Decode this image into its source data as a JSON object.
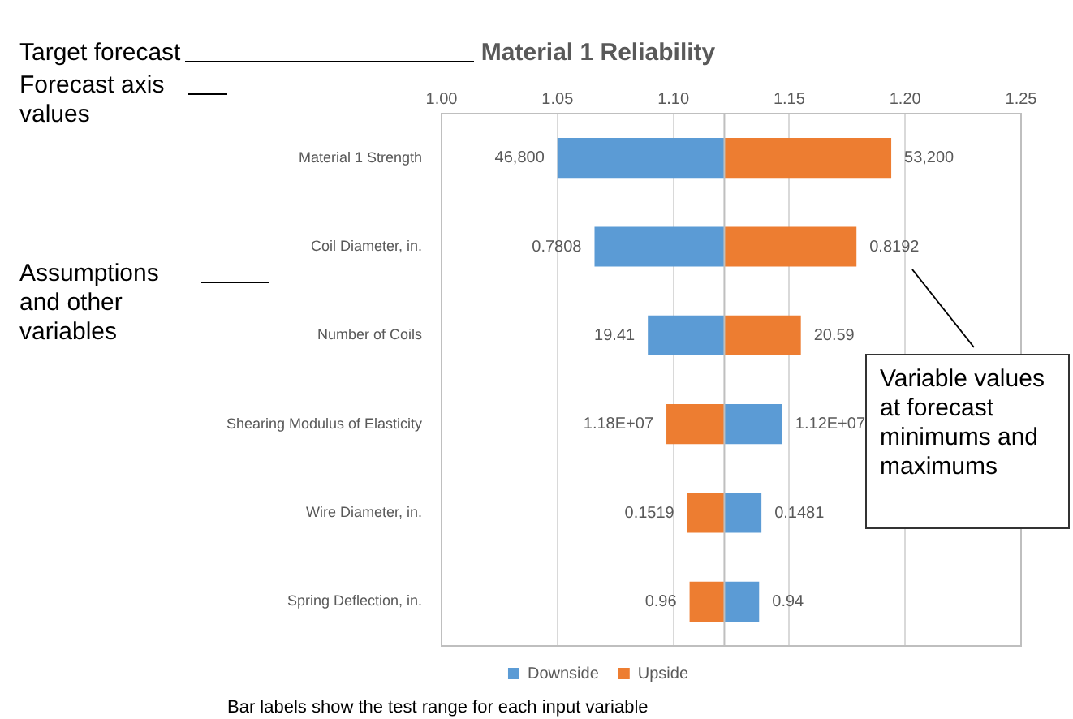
{
  "chart_data": {
    "type": "bar",
    "orientation": "horizontal",
    "title": "Material 1 Reliability",
    "categories": [
      "Material 1 Strength",
      "Coil Diameter, in.",
      "Number of Coils",
      "Shearing Modulus of Elasticity",
      "Wire Diameter, in.",
      "Spring Deflection, in."
    ],
    "series": [
      {
        "name": "Downside",
        "color": "#5b9bd5",
        "base": [
          1.122,
          1.122,
          1.122,
          1.122,
          1.122,
          1.122
        ],
        "values": [
          -0.072,
          -0.056,
          -0.033,
          0.025,
          0.016,
          0.015
        ]
      },
      {
        "name": "Upside",
        "color": "#ed7d31",
        "base": [
          1.122,
          1.122,
          1.122,
          1.122,
          1.122,
          1.122
        ],
        "values": [
          0.072,
          0.057,
          0.033,
          -0.025,
          -0.016,
          -0.015
        ]
      }
    ],
    "xlim": [
      1.0,
      1.25
    ],
    "xticks": [
      {
        "value": 1.0,
        "label": "1.00"
      },
      {
        "value": 1.05,
        "label": "1.05"
      },
      {
        "value": 1.1,
        "label": "1.10"
      },
      {
        "value": 1.15,
        "label": "1.15"
      },
      {
        "value": 1.2,
        "label": "1.20"
      },
      {
        "value": 1.25,
        "label": "1.25"
      }
    ],
    "ref_lines": [
      {
        "axis": "x",
        "value": 1.122,
        "color": "#bfbfbf"
      }
    ],
    "grid": "x",
    "legend": "bottom",
    "annotations": [
      "Target forecast",
      "Forecast axis values",
      "Assumptions and other variables",
      "Variable values at forecast minimums and maximums",
      "Bar labels show the test range for each input variable",
      {
        "text": "46,800",
        "x": 1.05,
        "y": "Material 1 Strength"
      },
      {
        "text": "53,200",
        "x": 1.194,
        "y": "Material 1 Strength"
      },
      {
        "text": "0.7808",
        "x": 1.066,
        "y": "Coil Diameter, in."
      },
      {
        "text": "0.8192",
        "x": 1.179,
        "y": "Coil Diameter, in."
      },
      {
        "text": "19.41",
        "x": 1.089,
        "y": "Number of Coils"
      },
      {
        "text": "20.59",
        "x": 1.155,
        "y": "Number of Coils"
      },
      {
        "text": "1.18E+07",
        "x": 1.097,
        "y": "Shearing Modulus of Elasticity"
      },
      {
        "text": "1.12E+07",
        "x": 1.147,
        "y": "Shearing Modulus of Elasticity"
      },
      {
        "text": "0.1519",
        "x": 1.106,
        "y": "Wire Diameter, in."
      },
      {
        "text": "0.1481",
        "x": 1.138,
        "y": "Wire Diameter, in."
      },
      {
        "text": "0.96",
        "x": 1.107,
        "y": "Spring Deflection, in."
      },
      {
        "text": "0.94",
        "x": 1.137,
        "y": "Spring Deflection, in."
      }
    ]
  }
}
